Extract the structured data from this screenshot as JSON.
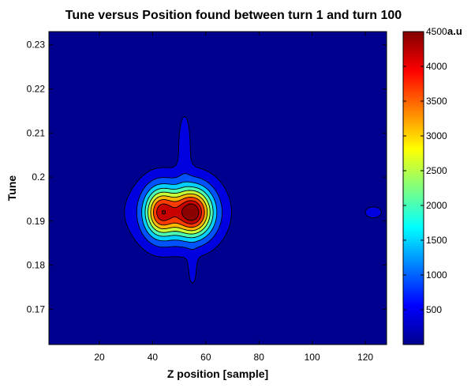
{
  "chart_data": {
    "type": "heatmap",
    "subtype": "filled-contour",
    "title": "Tune versus Position found between turn 1 and turn 100",
    "xlabel": "Z position [sample]",
    "ylabel": "Tune",
    "xlim": [
      1,
      128
    ],
    "ylim": [
      0.162,
      0.233
    ],
    "xticks": [
      20,
      40,
      60,
      80,
      100,
      120
    ],
    "yticks": [
      0.17,
      0.18,
      0.19,
      0.2,
      0.21,
      0.22,
      0.23
    ],
    "colormap": "jet",
    "colorbar": {
      "label": "a.u",
      "range": [
        0,
        4500
      ],
      "ticks": [
        500,
        1000,
        1500,
        2000,
        2500,
        3000,
        3500,
        4000,
        4500
      ]
    },
    "contour_levels": [
      200,
      650,
      1200,
      1750,
      2300,
      2850,
      3400,
      3950,
      4400
    ],
    "peaks": [
      {
        "x": 55,
        "y": 0.192,
        "value": 4500
      },
      {
        "x": 43,
        "y": 0.192,
        "value": 3600
      }
    ],
    "features": [
      {
        "description_key": "main-lobe",
        "x_range": [
          20,
          75
        ],
        "y_range": [
          0.183,
          0.201
        ]
      },
      {
        "description_key": "upper-spike",
        "x": 52,
        "y_range": [
          0.201,
          0.218
        ]
      },
      {
        "description_key": "lower-spike",
        "x": 55,
        "y_range": [
          0.175,
          0.183
        ]
      },
      {
        "description_key": "right-blob",
        "x": 123,
        "y": 0.192
      }
    ],
    "grid": false
  }
}
